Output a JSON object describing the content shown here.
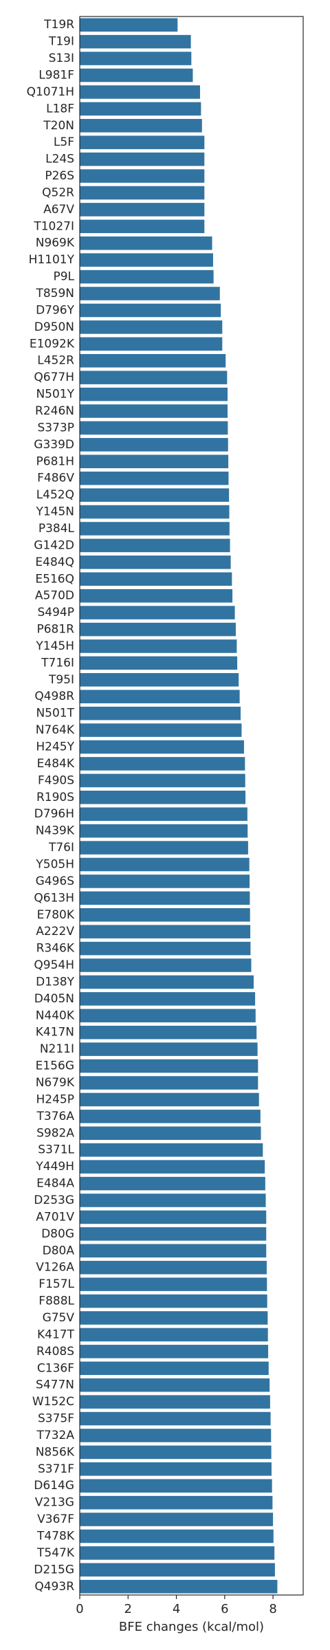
{
  "chart_data": {
    "type": "bar",
    "orientation": "horizontal",
    "categories": [
      "T19R",
      "T19I",
      "S13I",
      "L981F",
      "Q1071H",
      "L18F",
      "T20N",
      "L5F",
      "L24S",
      "P26S",
      "Q52R",
      "A67V",
      "T1027I",
      "N969K",
      "H1101Y",
      "P9L",
      "T859N",
      "D796Y",
      "D950N",
      "E1092K",
      "L452R",
      "Q677H",
      "N501Y",
      "R246N",
      "S373P",
      "G339D",
      "P681H",
      "F486V",
      "L452Q",
      "Y145N",
      "P384L",
      "G142D",
      "E484Q",
      "E516Q",
      "A570D",
      "S494P",
      "P681R",
      "Y145H",
      "T716I",
      "T95I",
      "Q498R",
      "N501T",
      "N764K",
      "H245Y",
      "E484K",
      "F490S",
      "R190S",
      "D796H",
      "N439K",
      "T76I",
      "Y505H",
      "G496S",
      "Q613H",
      "E780K",
      "A222V",
      "R346K",
      "Q954H",
      "D138Y",
      "D405N",
      "N440K",
      "K417N",
      "N211I",
      "E156G",
      "N679K",
      "H245P",
      "T376A",
      "S982A",
      "S371L",
      "Y449H",
      "E484A",
      "D253G",
      "A701V",
      "D80G",
      "D80A",
      "V126A",
      "F157L",
      "F888L",
      "G75V",
      "K417T",
      "R408S",
      "C136F",
      "S477N",
      "W152C",
      "S375F",
      "T732A",
      "N856K",
      "S371F",
      "D614G",
      "V213G",
      "V367F",
      "T478K",
      "T547K",
      "D215G",
      "Q493R"
    ],
    "values": [
      4.05,
      4.6,
      4.62,
      4.68,
      4.98,
      5.02,
      5.06,
      5.16,
      5.16,
      5.16,
      5.16,
      5.16,
      5.16,
      5.48,
      5.52,
      5.54,
      5.8,
      5.84,
      5.9,
      5.9,
      6.04,
      6.1,
      6.12,
      6.12,
      6.13,
      6.14,
      6.15,
      6.16,
      6.18,
      6.19,
      6.2,
      6.22,
      6.25,
      6.3,
      6.32,
      6.42,
      6.46,
      6.5,
      6.52,
      6.58,
      6.62,
      6.66,
      6.7,
      6.8,
      6.84,
      6.85,
      6.86,
      6.94,
      6.95,
      6.97,
      7.02,
      7.03,
      7.04,
      7.05,
      7.06,
      7.07,
      7.1,
      7.2,
      7.26,
      7.28,
      7.32,
      7.36,
      7.38,
      7.38,
      7.42,
      7.48,
      7.5,
      7.58,
      7.66,
      7.68,
      7.7,
      7.72,
      7.72,
      7.72,
      7.74,
      7.75,
      7.76,
      7.78,
      7.79,
      7.8,
      7.82,
      7.86,
      7.88,
      7.9,
      7.92,
      7.93,
      7.94,
      7.96,
      7.98,
      8.0,
      8.02,
      8.06,
      8.08,
      8.18
    ],
    "title": "",
    "xlabel": "BFE changes (kcal/mol)",
    "ylabel": "",
    "xlim": [
      0,
      9.25
    ],
    "xticks": [
      0,
      2,
      4,
      6,
      8
    ],
    "grid": false,
    "legend": "none",
    "bar_color": "#3274a1"
  }
}
